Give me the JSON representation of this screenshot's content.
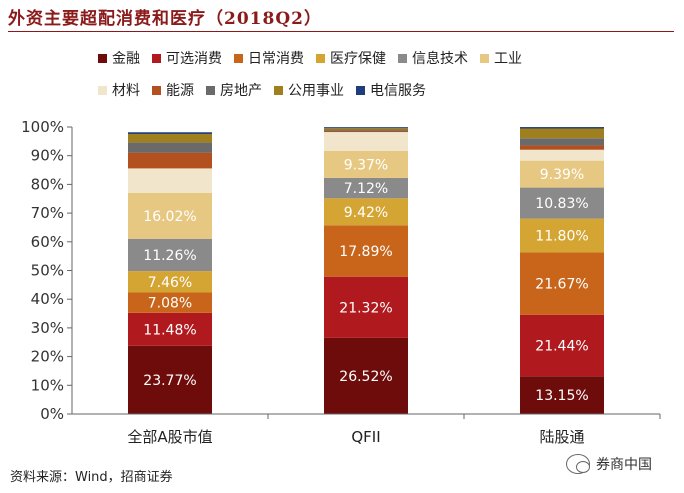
{
  "title": "外资主要超配消费和医疗（2018Q2）",
  "legend": {
    "row1": [
      {
        "label": "金融",
        "color": "#6e0c0c"
      },
      {
        "label": "可选消费",
        "color": "#b0191e"
      },
      {
        "label": "日常消费",
        "color": "#c8651b"
      },
      {
        "label": "医疗保健",
        "color": "#d4a533"
      },
      {
        "label": "信息技术",
        "color": "#8a8a8a"
      },
      {
        "label": "工业",
        "color": "#e7c882"
      }
    ],
    "row2": [
      {
        "label": "材料",
        "color": "#f1e6cc"
      },
      {
        "label": "能源",
        "color": "#b2501f"
      },
      {
        "label": "房地产",
        "color": "#6a6a6a"
      },
      {
        "label": "公用事业",
        "color": "#a07f1e"
      },
      {
        "label": "电信服务",
        "color": "#1f3d7a"
      }
    ]
  },
  "chart_data": {
    "type": "bar",
    "stacked": true,
    "categories": [
      "全部A股市值",
      "QFII",
      "陆股通"
    ],
    "y_ticks": [
      "0%",
      "10%",
      "20%",
      "30%",
      "40%",
      "50%",
      "60%",
      "70%",
      "80%",
      "90%",
      "100%"
    ],
    "ylim": [
      0,
      100
    ],
    "series": [
      {
        "name": "金融",
        "color": "#6e0c0c",
        "values": [
          23.77,
          26.52,
          13.15
        ],
        "labels": [
          "23.77%",
          "26.52%",
          "13.15%"
        ]
      },
      {
        "name": "可选消费",
        "color": "#b0191e",
        "values": [
          11.48,
          21.32,
          21.44
        ],
        "labels": [
          "11.48%",
          "21.32%",
          "21.44%"
        ]
      },
      {
        "name": "日常消费",
        "color": "#c8651b",
        "values": [
          7.08,
          17.89,
          21.67
        ],
        "labels": [
          "7.08%",
          "17.89%",
          "21.67%"
        ]
      },
      {
        "name": "医疗保健",
        "color": "#d4a533",
        "values": [
          7.46,
          9.42,
          11.8
        ],
        "labels": [
          "7.46%",
          "9.42%",
          "11.80%"
        ]
      },
      {
        "name": "信息技术",
        "color": "#8a8a8a",
        "values": [
          11.26,
          7.12,
          10.83
        ],
        "labels": [
          "11.26%",
          "7.12%",
          "10.83%"
        ]
      },
      {
        "name": "工业",
        "color": "#e7c882",
        "values": [
          16.02,
          9.37,
          9.39
        ],
        "labels": [
          "16.02%",
          "9.37%",
          "9.39%"
        ]
      },
      {
        "name": "材料",
        "color": "#f1e6cc",
        "values": [
          8.5,
          6.6,
          3.8
        ],
        "labels": [
          "",
          "",
          ""
        ]
      },
      {
        "name": "能源",
        "color": "#b2501f",
        "values": [
          5.5,
          0.4,
          1.5
        ],
        "labels": [
          "",
          "",
          ""
        ]
      },
      {
        "name": "房地产",
        "color": "#6a6a6a",
        "values": [
          3.5,
          0.5,
          2.5
        ],
        "labels": [
          "",
          "",
          ""
        ]
      },
      {
        "name": "公用事业",
        "color": "#a07f1e",
        "values": [
          3.0,
          0.5,
          3.4
        ],
        "labels": [
          "",
          "",
          ""
        ]
      },
      {
        "name": "电信服务",
        "color": "#1f3d7a",
        "values": [
          0.6,
          0.3,
          0.5
        ],
        "labels": [
          "",
          "",
          ""
        ]
      }
    ]
  },
  "footer": {
    "source": "资料来源：Wind，招商证券",
    "brand": "券商中国"
  }
}
